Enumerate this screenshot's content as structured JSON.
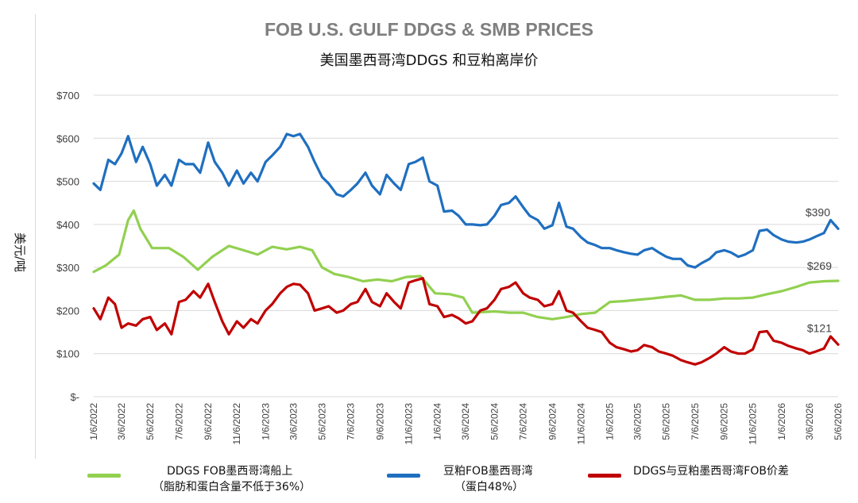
{
  "chart_data": {
    "type": "line",
    "title": "FOB U.S. GULF DDGS & SMB PRICES",
    "subtitle": "美国墨西哥湾DDGS 和豆粕离岸价",
    "ylabel": "美元/吨",
    "ylim": [
      0,
      700
    ],
    "y_ticks": [
      {
        "value": 0,
        "label": "$-"
      },
      {
        "value": 100,
        "label": "$100"
      },
      {
        "value": 200,
        "label": "$200"
      },
      {
        "value": 300,
        "label": "$300"
      },
      {
        "value": 400,
        "label": "$400"
      },
      {
        "value": 500,
        "label": "$500"
      },
      {
        "value": 600,
        "label": "$600"
      },
      {
        "value": 700,
        "label": "$700"
      }
    ],
    "x_ticks": [
      "1/6/2022",
      "3/6/2022",
      "5/6/2022",
      "7/6/2022",
      "9/6/2022",
      "11/6/2022",
      "1/6/2023",
      "3/6/2023",
      "5/6/2023",
      "7/6/2023",
      "9/6/2023",
      "11/6/2023",
      "1/6/2024",
      "3/6/2024",
      "5/6/2024",
      "7/6/2024",
      "9/6/2024",
      "11/6/2024",
      "1/6/2025",
      "3/6/2025",
      "5/6/2025",
      "7/6/2025",
      "9/6/2025",
      "11/6/2025",
      "1/6/2026",
      "3/6/2026",
      "5/6/2026"
    ],
    "grid": true,
    "legend_position": "bottom",
    "series": [
      {
        "name": "DDGS FOB墨西哥湾船上",
        "name_line2": "（脂肪和蛋白含量不低于36%）",
        "color": "#92d050",
        "end_label": "$269",
        "points": [
          [
            "1/6/2022",
            290
          ],
          [
            "2/1/2022",
            305
          ],
          [
            "3/1/2022",
            330
          ],
          [
            "3/20/2022",
            410
          ],
          [
            "4/1/2022",
            432
          ],
          [
            "4/15/2022",
            390
          ],
          [
            "5/10/2022",
            345
          ],
          [
            "6/15/2022",
            345
          ],
          [
            "7/15/2022",
            325
          ],
          [
            "8/15/2022",
            295
          ],
          [
            "9/15/2022",
            325
          ],
          [
            "10/20/2022",
            350
          ],
          [
            "11/20/2022",
            340
          ],
          [
            "12/20/2022",
            330
          ],
          [
            "1/20/2023",
            348
          ],
          [
            "2/20/2023",
            342
          ],
          [
            "3/20/2023",
            348
          ],
          [
            "4/15/2023",
            340
          ],
          [
            "5/6/2023",
            300
          ],
          [
            "6/1/2023",
            285
          ],
          [
            "7/1/2023",
            278
          ],
          [
            "8/1/2023",
            268
          ],
          [
            "9/1/2023",
            272
          ],
          [
            "10/1/2023",
            268
          ],
          [
            "11/1/2023",
            278
          ],
          [
            "12/1/2023",
            280
          ],
          [
            "1/1/2024",
            240
          ],
          [
            "2/1/2024",
            238
          ],
          [
            "3/1/2024",
            230
          ],
          [
            "3/20/2024",
            195
          ],
          [
            "5/6/2024",
            198
          ],
          [
            "6/6/2024",
            195
          ],
          [
            "7/6/2024",
            195
          ],
          [
            "8/6/2024",
            185
          ],
          [
            "9/6/2024",
            180
          ],
          [
            "10/6/2024",
            185
          ],
          [
            "11/6/2024",
            192
          ],
          [
            "12/6/2024",
            195
          ],
          [
            "1/6/2025",
            220
          ],
          [
            "2/6/2025",
            222
          ],
          [
            "3/6/2025",
            225
          ],
          [
            "4/6/2025",
            228
          ],
          [
            "5/6/2025",
            232
          ],
          [
            "6/6/2025",
            235
          ],
          [
            "7/6/2025",
            225
          ],
          [
            "8/6/2025",
            225
          ],
          [
            "9/6/2025",
            228
          ],
          [
            "10/6/2025",
            228
          ],
          [
            "11/6/2025",
            230
          ],
          [
            "12/6/2025",
            238
          ],
          [
            "1/6/2026",
            245
          ],
          [
            "2/6/2026",
            255
          ],
          [
            "3/6/2026",
            265
          ],
          [
            "4/6/2026",
            268
          ],
          [
            "5/6/2026",
            269
          ]
        ]
      },
      {
        "name": "豆粕FOB墨西哥湾",
        "name_line2": "（蛋白48%）",
        "color": "#1f6fc0",
        "end_label": "$390",
        "points": [
          [
            "1/6/2022",
            495
          ],
          [
            "1/20/2022",
            480
          ],
          [
            "2/6/2022",
            550
          ],
          [
            "2/20/2022",
            540
          ],
          [
            "3/6/2022",
            565
          ],
          [
            "3/20/2022",
            605
          ],
          [
            "4/6/2022",
            545
          ],
          [
            "4/20/2022",
            580
          ],
          [
            "5/6/2022",
            540
          ],
          [
            "5/20/2022",
            490
          ],
          [
            "6/6/2022",
            515
          ],
          [
            "6/20/2022",
            490
          ],
          [
            "7/6/2022",
            550
          ],
          [
            "7/20/2022",
            540
          ],
          [
            "8/6/2022",
            540
          ],
          [
            "8/20/2022",
            520
          ],
          [
            "9/6/2022",
            590
          ],
          [
            "9/20/2022",
            545
          ],
          [
            "10/6/2022",
            520
          ],
          [
            "10/20/2022",
            490
          ],
          [
            "11/6/2022",
            525
          ],
          [
            "11/20/2022",
            495
          ],
          [
            "12/6/2022",
            520
          ],
          [
            "12/20/2022",
            500
          ],
          [
            "1/6/2023",
            545
          ],
          [
            "1/20/2023",
            560
          ],
          [
            "2/6/2023",
            580
          ],
          [
            "2/20/2023",
            610
          ],
          [
            "3/6/2023",
            605
          ],
          [
            "3/20/2023",
            610
          ],
          [
            "4/6/2023",
            580
          ],
          [
            "4/20/2023",
            545
          ],
          [
            "5/6/2023",
            510
          ],
          [
            "5/20/2023",
            495
          ],
          [
            "6/6/2023",
            470
          ],
          [
            "6/20/2023",
            465
          ],
          [
            "7/6/2023",
            480
          ],
          [
            "7/20/2023",
            495
          ],
          [
            "8/6/2023",
            520
          ],
          [
            "8/20/2023",
            490
          ],
          [
            "9/6/2023",
            470
          ],
          [
            "9/20/2023",
            515
          ],
          [
            "10/6/2023",
            495
          ],
          [
            "10/20/2023",
            480
          ],
          [
            "11/6/2023",
            540
          ],
          [
            "11/20/2023",
            545
          ],
          [
            "12/6/2023",
            555
          ],
          [
            "12/20/2023",
            500
          ],
          [
            "1/6/2024",
            490
          ],
          [
            "1/20/2024",
            430
          ],
          [
            "2/6/2024",
            432
          ],
          [
            "2/20/2024",
            420
          ],
          [
            "3/6/2024",
            400
          ],
          [
            "3/20/2024",
            400
          ],
          [
            "4/6/2024",
            398
          ],
          [
            "4/20/2024",
            400
          ],
          [
            "5/6/2024",
            420
          ],
          [
            "5/20/2024",
            445
          ],
          [
            "6/6/2024",
            450
          ],
          [
            "6/20/2024",
            465
          ],
          [
            "7/6/2024",
            440
          ],
          [
            "7/20/2024",
            420
          ],
          [
            "8/6/2024",
            410
          ],
          [
            "8/20/2024",
            390
          ],
          [
            "9/6/2024",
            398
          ],
          [
            "9/20/2024",
            450
          ],
          [
            "10/6/2024",
            395
          ],
          [
            "10/20/2024",
            390
          ],
          [
            "11/6/2024",
            370
          ],
          [
            "11/20/2024",
            358
          ],
          [
            "12/6/2024",
            352
          ],
          [
            "12/20/2024",
            345
          ],
          [
            "1/6/2025",
            345
          ],
          [
            "1/20/2025",
            340
          ],
          [
            "2/6/2025",
            335
          ],
          [
            "2/20/2025",
            332
          ],
          [
            "3/6/2025",
            330
          ],
          [
            "3/20/2025",
            340
          ],
          [
            "4/6/2025",
            345
          ],
          [
            "4/20/2025",
            335
          ],
          [
            "5/6/2025",
            325
          ],
          [
            "5/20/2025",
            320
          ],
          [
            "6/6/2025",
            320
          ],
          [
            "6/20/2025",
            305
          ],
          [
            "7/6/2025",
            300
          ],
          [
            "7/20/2025",
            310
          ],
          [
            "8/6/2025",
            320
          ],
          [
            "8/20/2025",
            335
          ],
          [
            "9/6/2025",
            340
          ],
          [
            "9/20/2025",
            335
          ],
          [
            "10/6/2025",
            325
          ],
          [
            "10/20/2025",
            330
          ],
          [
            "11/6/2025",
            340
          ],
          [
            "11/20/2025",
            385
          ],
          [
            "12/6/2025",
            388
          ],
          [
            "12/20/2025",
            375
          ],
          [
            "1/6/2026",
            365
          ],
          [
            "1/20/2026",
            360
          ],
          [
            "2/6/2026",
            358
          ],
          [
            "2/20/2026",
            360
          ],
          [
            "3/6/2026",
            365
          ],
          [
            "3/20/2026",
            372
          ],
          [
            "4/6/2026",
            380
          ],
          [
            "4/20/2026",
            410
          ],
          [
            "5/6/2026",
            390
          ]
        ]
      },
      {
        "name": "DDGS与豆粕墨西哥湾FOB价差",
        "name_line2": "",
        "color": "#c00000",
        "end_label": "$121",
        "points": [
          [
            "1/6/2022",
            205
          ],
          [
            "1/20/2022",
            180
          ],
          [
            "2/6/2022",
            230
          ],
          [
            "2/20/2022",
            215
          ],
          [
            "3/6/2022",
            160
          ],
          [
            "3/20/2022",
            170
          ],
          [
            "4/6/2022",
            165
          ],
          [
            "4/20/2022",
            180
          ],
          [
            "5/6/2022",
            185
          ],
          [
            "5/20/2022",
            155
          ],
          [
            "6/6/2022",
            170
          ],
          [
            "6/20/2022",
            145
          ],
          [
            "7/6/2022",
            220
          ],
          [
            "7/20/2022",
            225
          ],
          [
            "8/6/2022",
            245
          ],
          [
            "8/20/2022",
            230
          ],
          [
            "9/6/2022",
            262
          ],
          [
            "9/20/2022",
            220
          ],
          [
            "10/6/2022",
            175
          ],
          [
            "10/20/2022",
            145
          ],
          [
            "11/6/2022",
            175
          ],
          [
            "11/20/2022",
            160
          ],
          [
            "12/6/2022",
            180
          ],
          [
            "12/20/2022",
            170
          ],
          [
            "1/6/2023",
            200
          ],
          [
            "1/20/2023",
            215
          ],
          [
            "2/6/2023",
            240
          ],
          [
            "2/20/2023",
            255
          ],
          [
            "3/6/2023",
            262
          ],
          [
            "3/20/2023",
            260
          ],
          [
            "4/6/2023",
            240
          ],
          [
            "4/20/2023",
            200
          ],
          [
            "5/6/2023",
            205
          ],
          [
            "5/20/2023",
            210
          ],
          [
            "6/6/2023",
            195
          ],
          [
            "6/20/2023",
            200
          ],
          [
            "7/6/2023",
            215
          ],
          [
            "7/20/2023",
            220
          ],
          [
            "8/6/2023",
            250
          ],
          [
            "8/20/2023",
            220
          ],
          [
            "9/6/2023",
            210
          ],
          [
            "9/20/2023",
            240
          ],
          [
            "10/6/2023",
            220
          ],
          [
            "10/20/2023",
            205
          ],
          [
            "11/6/2023",
            265
          ],
          [
            "11/20/2023",
            270
          ],
          [
            "12/6/2023",
            275
          ],
          [
            "12/20/2023",
            215
          ],
          [
            "1/6/2024",
            210
          ],
          [
            "1/20/2024",
            185
          ],
          [
            "2/6/2024",
            190
          ],
          [
            "2/20/2024",
            182
          ],
          [
            "3/6/2024",
            170
          ],
          [
            "3/20/2024",
            175
          ],
          [
            "4/6/2024",
            200
          ],
          [
            "4/20/2024",
            205
          ],
          [
            "5/6/2024",
            225
          ],
          [
            "5/20/2024",
            250
          ],
          [
            "6/6/2024",
            255
          ],
          [
            "6/20/2024",
            265
          ],
          [
            "7/6/2024",
            240
          ],
          [
            "7/20/2024",
            230
          ],
          [
            "8/6/2024",
            225
          ],
          [
            "8/20/2024",
            210
          ],
          [
            "9/6/2024",
            215
          ],
          [
            "9/20/2024",
            245
          ],
          [
            "10/6/2024",
            200
          ],
          [
            "10/20/2024",
            195
          ],
          [
            "11/6/2024",
            175
          ],
          [
            "11/20/2024",
            160
          ],
          [
            "12/6/2024",
            155
          ],
          [
            "12/20/2024",
            150
          ],
          [
            "1/6/2025",
            125
          ],
          [
            "1/20/2025",
            115
          ],
          [
            "2/6/2025",
            110
          ],
          [
            "2/20/2025",
            105
          ],
          [
            "3/6/2025",
            108
          ],
          [
            "3/20/2025",
            120
          ],
          [
            "4/6/2025",
            115
          ],
          [
            "4/20/2025",
            105
          ],
          [
            "5/6/2025",
            100
          ],
          [
            "5/20/2025",
            95
          ],
          [
            "6/6/2025",
            85
          ],
          [
            "6/20/2025",
            80
          ],
          [
            "7/6/2025",
            75
          ],
          [
            "7/20/2025",
            80
          ],
          [
            "8/6/2025",
            90
          ],
          [
            "8/20/2025",
            100
          ],
          [
            "9/6/2025",
            115
          ],
          [
            "9/20/2025",
            105
          ],
          [
            "10/6/2025",
            100
          ],
          [
            "10/20/2025",
            100
          ],
          [
            "11/6/2025",
            110
          ],
          [
            "11/20/2025",
            150
          ],
          [
            "12/6/2025",
            152
          ],
          [
            "12/20/2025",
            130
          ],
          [
            "1/6/2026",
            125
          ],
          [
            "1/20/2026",
            118
          ],
          [
            "2/6/2026",
            112
          ],
          [
            "2/20/2026",
            108
          ],
          [
            "3/6/2026",
            100
          ],
          [
            "3/20/2026",
            105
          ],
          [
            "4/6/2026",
            112
          ],
          [
            "4/20/2026",
            140
          ],
          [
            "5/6/2026",
            121
          ]
        ]
      }
    ]
  }
}
